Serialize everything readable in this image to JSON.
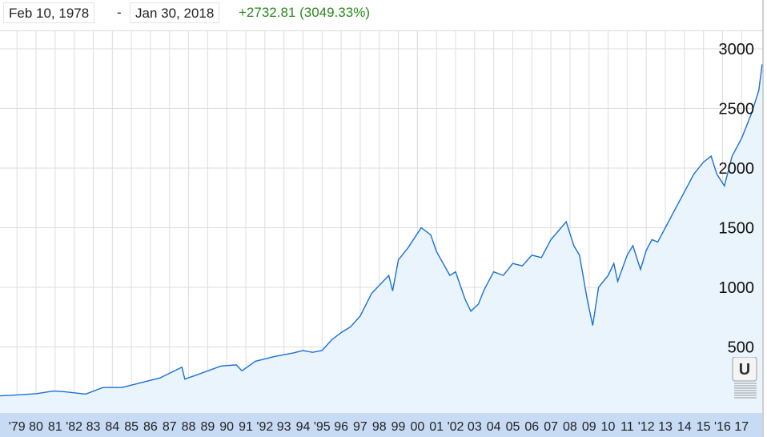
{
  "header": {
    "start_date": "Feb 10, 1978",
    "separator": "-",
    "end_date": "Jan 30, 2018",
    "change_text": "+2732.81 (3049.33%)"
  },
  "colors": {
    "line": "#1a6fd6",
    "fill": "#eaf4fd",
    "change_positive": "#2a8a1d",
    "grid": "#dddddd",
    "xaxis_band": "#c7dbf5"
  },
  "scroll_widget": {
    "label": "U",
    "icon": "scroll-handle-icon"
  },
  "chart_data": {
    "type": "area",
    "grid": true,
    "ylim": [
      0,
      3000
    ],
    "xlim": [
      1978.11,
      2018.08
    ],
    "y_ticks": [
      500,
      1000,
      1500,
      2000,
      2500,
      3000
    ],
    "y_tick_labels": [
      "500",
      "1000",
      "1500",
      "2000",
      "2500",
      "3000"
    ],
    "x_ticks": [
      1979,
      1980,
      1981,
      1982,
      1983,
      1984,
      1985,
      1986,
      1987,
      1988,
      1989,
      1990,
      1991,
      1992,
      1993,
      1994,
      1995,
      1996,
      1997,
      1998,
      1999,
      2000,
      2001,
      2002,
      2003,
      2004,
      2005,
      2006,
      2007,
      2008,
      2009,
      2010,
      2011,
      2012,
      2013,
      2014,
      2015,
      2016,
      2017
    ],
    "x_tick_labels": [
      "'79",
      "80",
      "81",
      "'82",
      "83",
      "84",
      "85",
      "86",
      "87",
      "88",
      "89",
      "90",
      "91",
      "'92",
      "93",
      "94",
      "'95",
      "96",
      "97",
      "98",
      "99",
      "00",
      "01",
      "'02",
      "03",
      "04",
      "05",
      "06",
      "07",
      "08",
      "09",
      "10",
      "11",
      "'12",
      "13",
      "14",
      "15",
      "'16",
      "17"
    ],
    "series": [
      {
        "x": [
          1978.11,
          1979.0,
          1980.0,
          1980.9,
          1981.5,
          1982.6,
          1983.5,
          1984.5,
          1985.5,
          1986.5,
          1987.65,
          1987.8,
          1988.5,
          1989.7,
          1990.5,
          1990.8,
          1991.5,
          1992.5,
          1993.5,
          1994.0,
          1994.5,
          1995.0,
          1995.5,
          1996.0,
          1996.5,
          1997.0,
          1997.6,
          1998.5,
          1998.7,
          1999.0,
          1999.5,
          2000.2,
          2000.7,
          2001.0,
          2001.7,
          2002.0,
          2002.5,
          2002.8,
          2003.2,
          2003.5,
          2004.0,
          2004.5,
          2005.0,
          2005.5,
          2006.0,
          2006.5,
          2007.0,
          2007.8,
          2008.2,
          2008.5,
          2008.9,
          2009.19,
          2009.5,
          2010.0,
          2010.3,
          2010.5,
          2011.0,
          2011.3,
          2011.7,
          2012.0,
          2012.3,
          2012.6,
          2013.0,
          2013.5,
          2014.0,
          2014.5,
          2015.0,
          2015.4,
          2015.7,
          2016.1,
          2016.5,
          2017.0,
          2017.5,
          2017.9,
          2018.08
        ],
        "y": [
          90,
          98,
          108,
          130,
          125,
          105,
          160,
          160,
          200,
          240,
          330,
          230,
          270,
          340,
          350,
          300,
          380,
          420,
          450,
          470,
          455,
          470,
          560,
          620,
          670,
          760,
          950,
          1100,
          970,
          1230,
          1330,
          1500,
          1440,
          1300,
          1100,
          1130,
          900,
          800,
          860,
          980,
          1130,
          1100,
          1200,
          1180,
          1270,
          1250,
          1400,
          1550,
          1350,
          1270,
          900,
          680,
          1000,
          1100,
          1200,
          1050,
          1270,
          1350,
          1150,
          1310,
          1400,
          1380,
          1500,
          1650,
          1800,
          1950,
          2050,
          2100,
          1950,
          1850,
          2100,
          2250,
          2450,
          2650,
          2870
        ]
      }
    ]
  }
}
